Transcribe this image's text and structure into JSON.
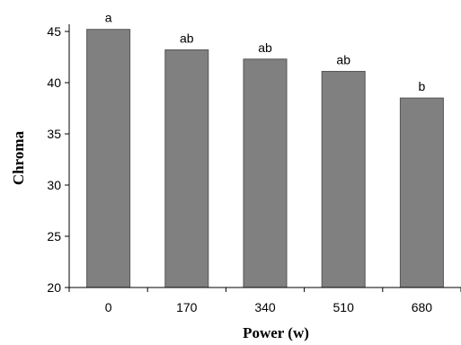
{
  "chart_data": {
    "type": "bar",
    "categories": [
      "0",
      "170",
      "340",
      "510",
      "680"
    ],
    "values": [
      45.2,
      43.2,
      42.3,
      41.1,
      38.5
    ],
    "data_labels": [
      "a",
      "ab",
      "ab",
      "ab",
      "b"
    ],
    "xlabel": "Power (w)",
    "ylabel": "Chroma",
    "ylim": [
      20,
      45
    ],
    "yticks": [
      "20",
      "25",
      "30",
      "35",
      "40",
      "45"
    ],
    "grid": false,
    "bar_color": "#808080",
    "bar_edge_color": "#555555"
  }
}
